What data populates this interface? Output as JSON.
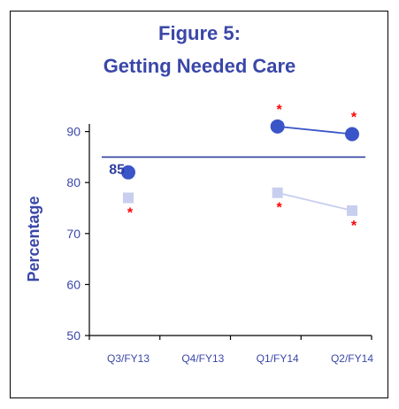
{
  "chart_data": {
    "type": "line",
    "title_line1": "Figure 5:",
    "title_line2": "Getting Needed Care",
    "ylabel": "Percentage",
    "xlabel": "",
    "categories": [
      "Q3/FY13",
      "Q4/FY13",
      "Q1/FY14",
      "Q2/FY14"
    ],
    "ylim": [
      50,
      95
    ],
    "yticks": [
      "50",
      "60",
      "70",
      "80",
      "90"
    ],
    "benchmark": {
      "value": 85,
      "label": "85",
      "from": "Q3/FY13",
      "to": "Q2/FY14"
    },
    "series": [
      {
        "color": "#3a55c8",
        "marker": "circle",
        "values": [
          82,
          null,
          91,
          89.5
        ],
        "significant": [
          false,
          false,
          true,
          true
        ],
        "connect_from": 2
      },
      {
        "color": "#c8cfee",
        "marker": "square",
        "values": [
          77,
          null,
          78,
          74.5
        ],
        "significant": [
          true,
          false,
          true,
          true
        ],
        "connect_from": 2
      }
    ],
    "significance_marker": "*",
    "significance_color": "#ff0000",
    "grid": false
  }
}
